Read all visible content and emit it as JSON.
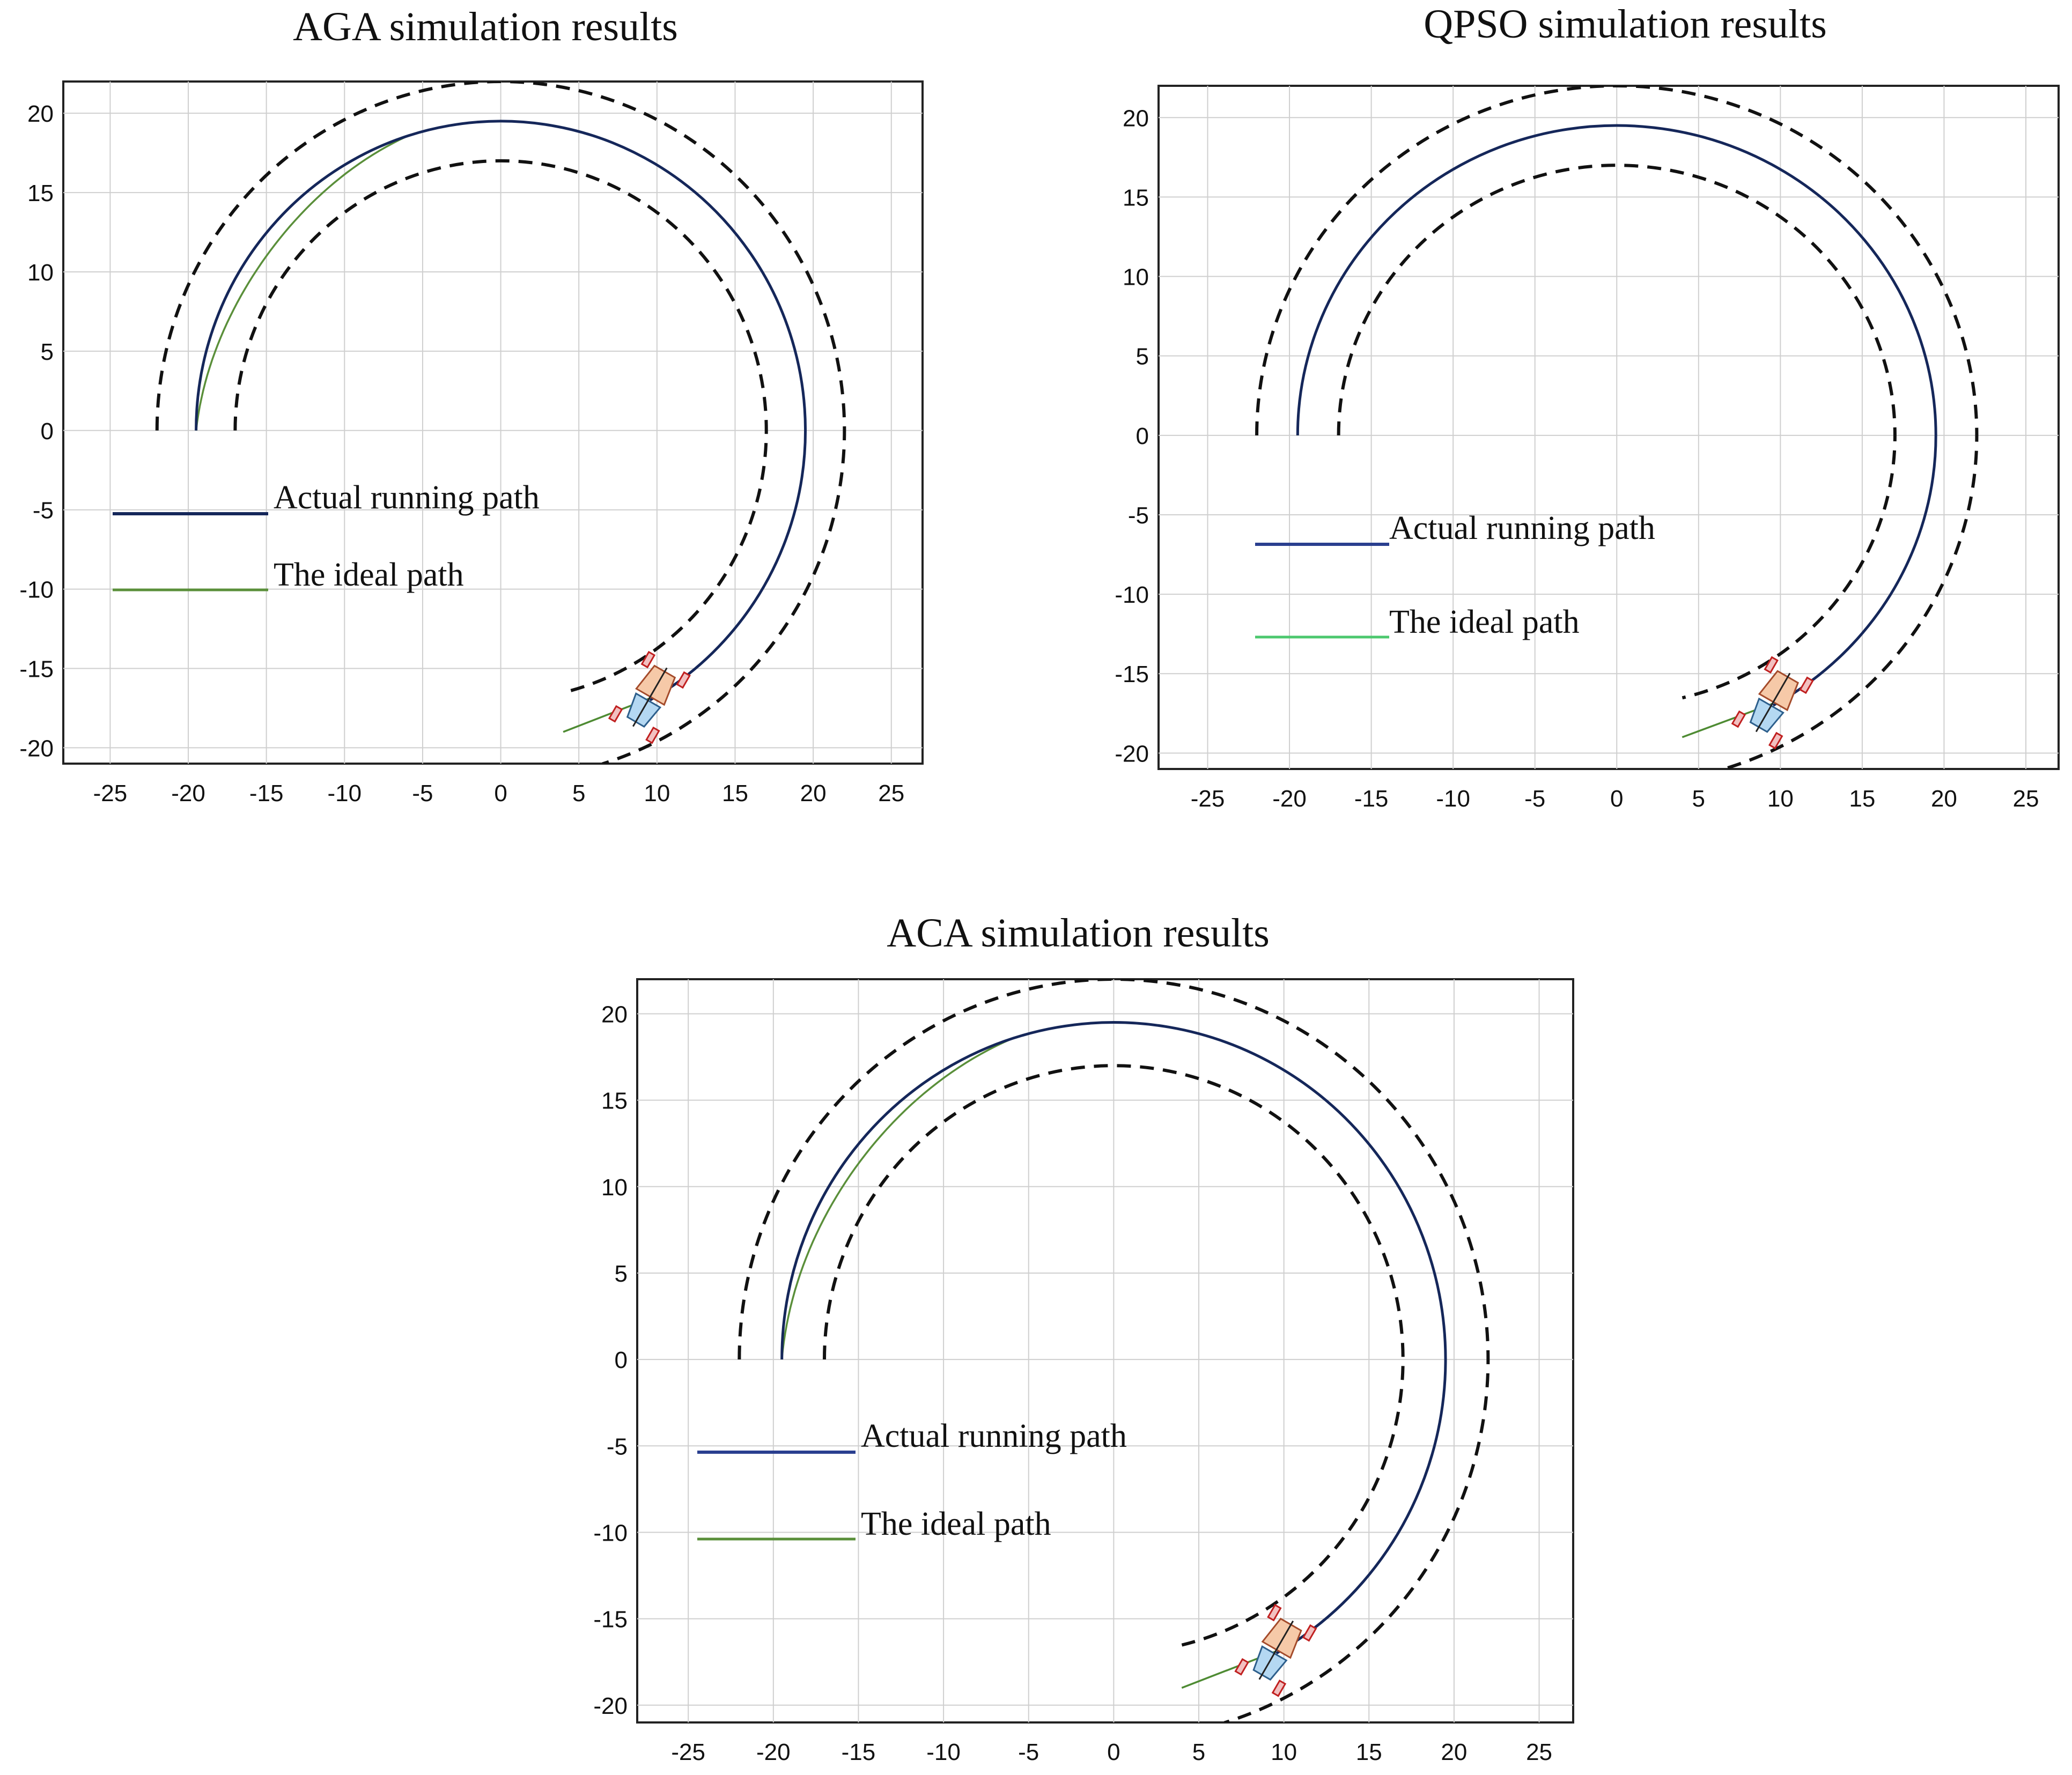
{
  "chart_data": [
    {
      "type": "line",
      "title": "AGA simulation results",
      "xlabel": "",
      "ylabel": "",
      "xlim": [
        -28,
        27
      ],
      "ylim": [
        -21,
        22
      ],
      "xticks": [
        -25,
        -20,
        -15,
        -10,
        -5,
        0,
        5,
        10,
        15,
        20,
        25
      ],
      "yticks": [
        -20,
        -15,
        -10,
        -5,
        0,
        5,
        10,
        15,
        20
      ],
      "grid": true,
      "legend": {
        "placement": "middle-left"
      },
      "series": [
        {
          "name": "Actual running path",
          "color": "#15275a",
          "arc_center": [
            0,
            0
          ],
          "radius": 19.5,
          "start_point": [
            -19.5,
            0
          ],
          "end_point": [
            9.5,
            -16.9
          ],
          "direction": "clockwise"
        },
        {
          "name": "The ideal path",
          "color": "#5a8f3a",
          "start_point": [
            -19.5,
            0
          ],
          "end_point": [
            9.5,
            -16.9
          ],
          "max_inward_deviation": 0.9,
          "lead_in_segment": [
            [
              4,
              -19
            ],
            [
              9.5,
              -16.9
            ]
          ]
        }
      ],
      "boundaries": [
        {
          "name": "outer boundary",
          "style": "dashed",
          "radius": 22,
          "start_point": [
            -22,
            0
          ],
          "end_point": [
            6.5,
            -21
          ]
        },
        {
          "name": "inner boundary",
          "style": "dashed",
          "radius": 17,
          "start_point": [
            -17,
            0
          ],
          "end_point": [
            4,
            -16.5
          ]
        }
      ],
      "vehicle": {
        "position": [
          9.5,
          -16.9
        ],
        "heading_deg": 60
      }
    },
    {
      "type": "line",
      "title": "QPSO simulation results",
      "xlabel": "",
      "ylabel": "",
      "xlim": [
        -28,
        27
      ],
      "ylim": [
        -21,
        22
      ],
      "xticks": [
        -25,
        -20,
        -15,
        -10,
        -5,
        0,
        5,
        10,
        15,
        20,
        25
      ],
      "yticks": [
        -20,
        -15,
        -10,
        -5,
        0,
        5,
        10,
        15,
        20
      ],
      "grid": true,
      "legend": {
        "placement": "middle-left"
      },
      "series": [
        {
          "name": "Actual running path",
          "color": "#2a3f8f",
          "arc_center": [
            0,
            0
          ],
          "radius": 19.5,
          "start_point": [
            -19.5,
            0
          ],
          "end_point": [
            9.5,
            -16.9
          ],
          "direction": "clockwise"
        },
        {
          "name": "The ideal path",
          "color": "#4cc86e",
          "start_point": [
            -19.5,
            0
          ],
          "end_point": [
            9.5,
            -16.9
          ],
          "max_inward_deviation": 0.0,
          "lead_in_segment": [
            [
              4,
              -19
            ],
            [
              9.5,
              -16.9
            ]
          ]
        }
      ],
      "boundaries": [
        {
          "name": "outer boundary",
          "style": "dashed",
          "radius": 22,
          "start_point": [
            -22,
            0
          ],
          "end_point": [
            5,
            -21
          ]
        },
        {
          "name": "inner boundary",
          "style": "dashed",
          "radius": 17,
          "start_point": [
            -17,
            0
          ],
          "end_point": [
            4,
            -16.5
          ]
        }
      ],
      "vehicle": {
        "position": [
          9.5,
          -16.9
        ],
        "heading_deg": 60
      }
    },
    {
      "type": "line",
      "title": "ACA simulation results",
      "xlabel": "",
      "ylabel": "",
      "xlim": [
        -28,
        27
      ],
      "ylim": [
        -21,
        22
      ],
      "xticks": [
        -25,
        -20,
        -15,
        -10,
        -5,
        0,
        5,
        10,
        15,
        20,
        25
      ],
      "yticks": [
        -20,
        -15,
        -10,
        -5,
        0,
        5,
        10,
        15,
        20
      ],
      "grid": true,
      "legend": {
        "placement": "middle-left"
      },
      "series": [
        {
          "name": "Actual running path",
          "color": "#2a3f8f",
          "arc_center": [
            0,
            0
          ],
          "radius": 19.5,
          "start_point": [
            -19.5,
            0
          ],
          "end_point": [
            9.5,
            -16.9
          ],
          "direction": "clockwise"
        },
        {
          "name": "The ideal path",
          "color": "#5a8f3a",
          "start_point": [
            -19.5,
            0
          ],
          "end_point": [
            9.5,
            -16.9
          ],
          "max_inward_deviation": 0.7,
          "lead_in_segment": [
            [
              4,
              -19
            ],
            [
              9.5,
              -16.9
            ]
          ]
        }
      ],
      "boundaries": [
        {
          "name": "outer boundary",
          "style": "dashed",
          "radius": 22,
          "start_point": [
            -22,
            0
          ],
          "end_point": [
            6.5,
            -21
          ]
        },
        {
          "name": "inner boundary",
          "style": "dashed",
          "radius": 17,
          "start_point": [
            -17,
            0
          ],
          "end_point": [
            4,
            -16.5
          ]
        }
      ],
      "vehicle": {
        "position": [
          9.5,
          -16.9
        ],
        "heading_deg": 60
      }
    }
  ]
}
